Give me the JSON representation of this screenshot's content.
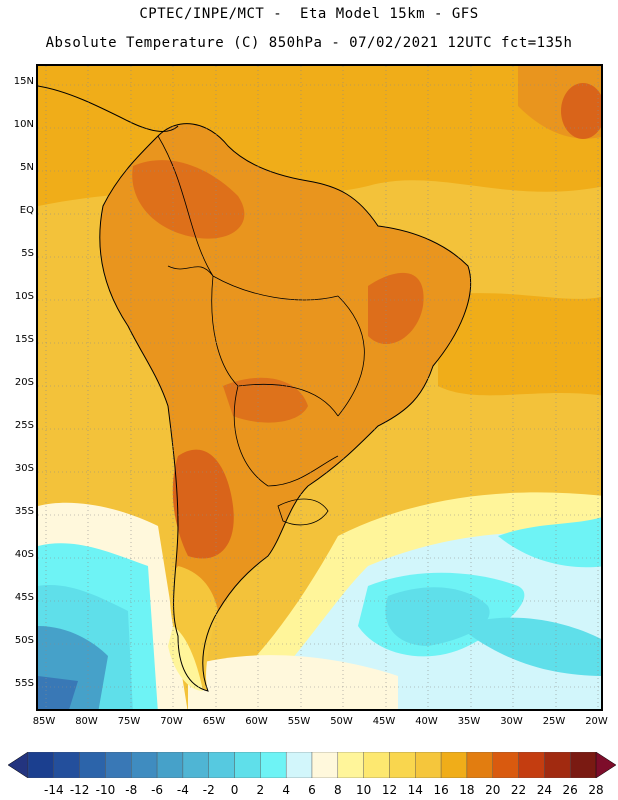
{
  "header": {
    "title_line1": "CPTEC/INPE/MCT -  Eta Model 15km - GFS",
    "title_line2": "Absolute Temperature (C) 850hPa - 07/02/2021 12UTC fct=135h"
  },
  "map": {
    "latitude_labels": [
      "15N",
      "10N",
      "5N",
      "EQ",
      "5S",
      "10S",
      "15S",
      "20S",
      "25S",
      "30S",
      "35S",
      "40S",
      "45S",
      "50S",
      "55S"
    ],
    "longitude_labels": [
      "85W",
      "80W",
      "75W",
      "70W",
      "65W",
      "60W",
      "55W",
      "50W",
      "45W",
      "40W",
      "35W",
      "30W",
      "25W",
      "20W"
    ]
  },
  "colorbar": {
    "tick_labels": [
      "-14",
      "-12",
      "-10",
      "-8",
      "-6",
      "-4",
      "-2",
      "0",
      "2",
      "4",
      "6",
      "8",
      "10",
      "12",
      "14",
      "16",
      "18",
      "20",
      "22",
      "24",
      "26",
      "28"
    ],
    "colors": [
      "#1b3f8f",
      "#234f9c",
      "#2c64aa",
      "#3978b6",
      "#3f8cc0",
      "#46a1c9",
      "#4fb5d4",
      "#56c9e0",
      "#5fdfea",
      "#6ef3f5",
      "#d2f6fb",
      "#fff8dc",
      "#fff59a",
      "#fde870",
      "#f9d64e",
      "#f5c63c",
      "#f0ad19",
      "#e27d10",
      "#d95a0f",
      "#c43d10",
      "#a12a10",
      "#7a1a12"
    ],
    "under_color": "#23347f",
    "over_color": "#7d0d2a"
  },
  "legend_colors": {
    "ocean_base": "#f3c23a",
    "land_warm": "#e9951e",
    "land_hot": "#d9641a",
    "cold_south": "#5fdfea",
    "very_cold": "#46a1c9",
    "pale": "#fff8dc",
    "border": "#000000"
  }
}
